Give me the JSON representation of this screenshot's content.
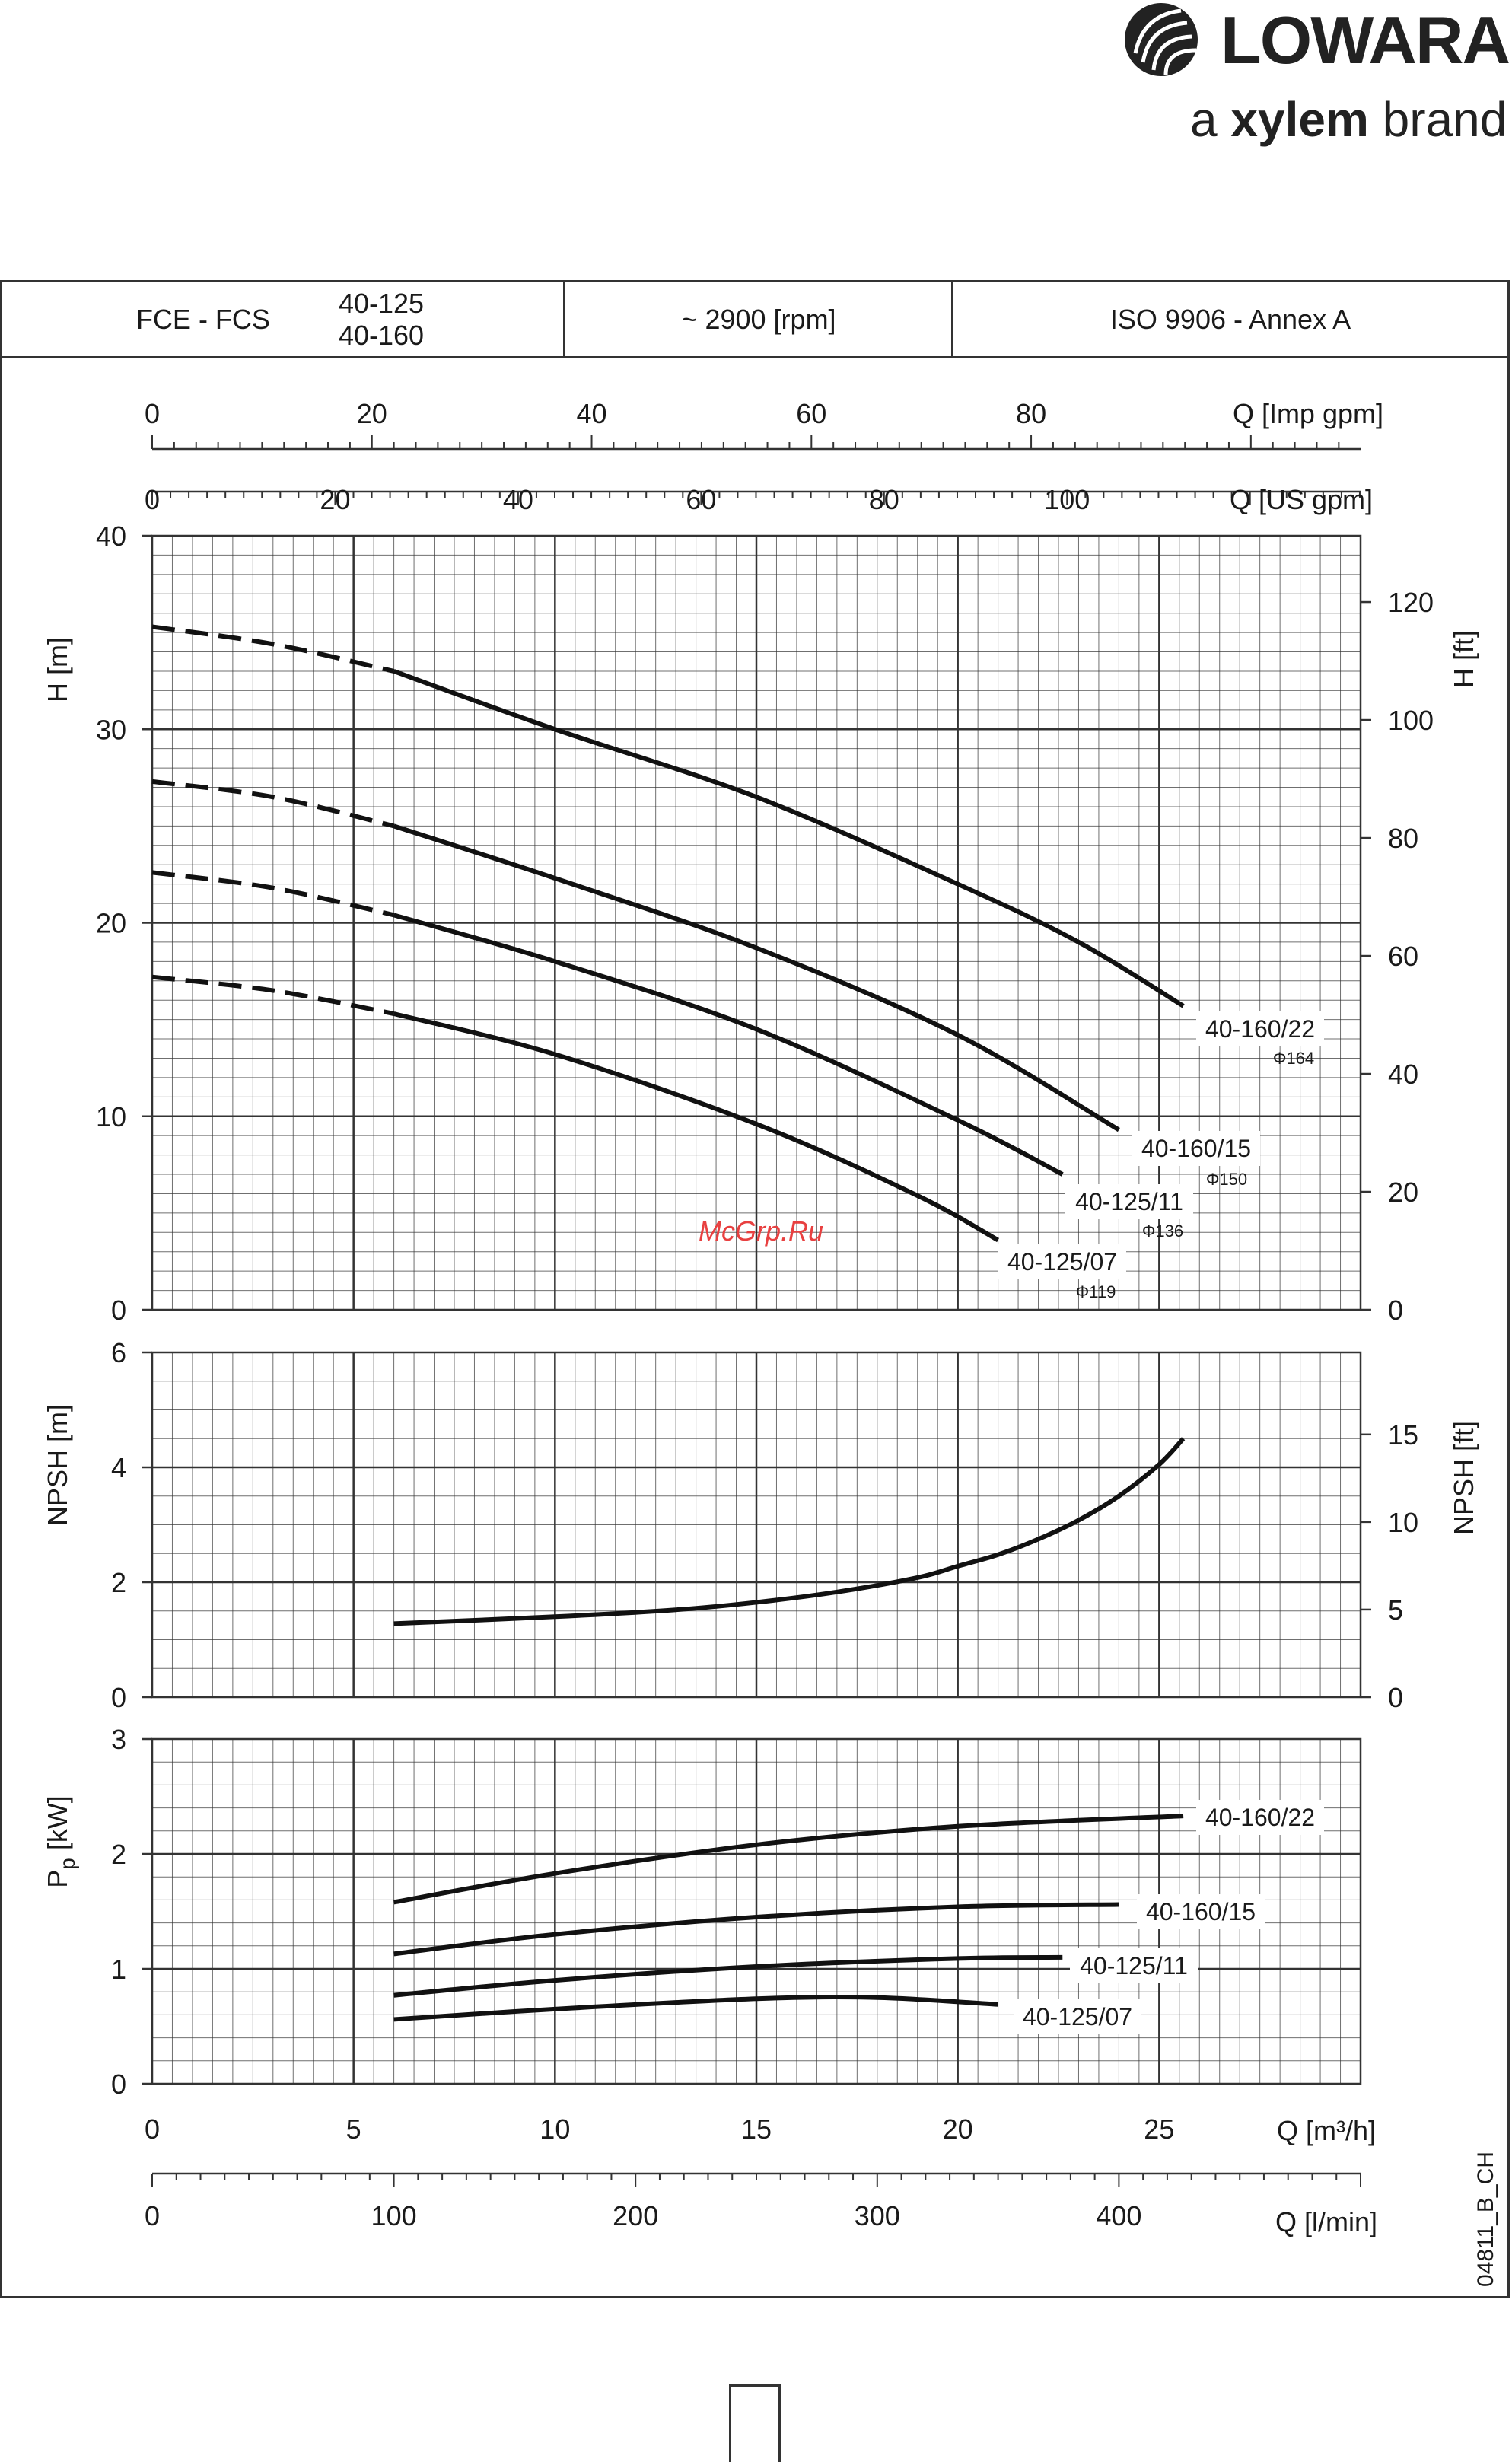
{
  "logo": {
    "brand": "LOWARA",
    "tagline_prefix": "a",
    "tagline_brand": "xylem",
    "tagline_suffix": "brand",
    "icon": "lowara-swirl-icon"
  },
  "header": {
    "series": "FCE - FCS",
    "models": [
      "40-125",
      "40-160"
    ],
    "speed": "~ 2900 [rpm]",
    "standard": "ISO 9906 - Annex A"
  },
  "watermark": "McGrp.Ru",
  "doc_code": "04811_B_CH",
  "colors": {
    "curve": "#111111",
    "grid": "#333333",
    "watermark": "#e84040"
  },
  "chart_data": [
    {
      "type": "line",
      "title": "",
      "xlabel": "Q [m³/h]",
      "ylabel": "H [m]",
      "ylabel_right": "H [ft]",
      "xlim": [
        0,
        30
      ],
      "ylim": [
        0,
        40
      ],
      "y_ticks": [
        0,
        10,
        20,
        30,
        40
      ],
      "y_right_ticks": [
        0,
        20,
        40,
        60,
        80,
        100,
        120
      ],
      "top_axes": [
        {
          "label": "Q [Imp gpm]",
          "ticks": [
            0,
            20,
            40,
            60,
            80
          ]
        },
        {
          "label": "Q [US gpm]",
          "ticks": [
            0,
            20,
            40,
            60,
            80,
            100
          ]
        }
      ],
      "grid": true,
      "dashed_below_x": 6,
      "series": [
        {
          "name": "40-160/22",
          "diameter": "Φ164",
          "x": [
            0,
            3,
            6,
            10,
            15,
            20,
            23,
            25.6
          ],
          "y": [
            35.3,
            34.4,
            33.0,
            30.0,
            26.5,
            22.0,
            19.0,
            15.7
          ]
        },
        {
          "name": "40-160/15",
          "diameter": "Φ150",
          "x": [
            0,
            3,
            6,
            10,
            15,
            20,
            24
          ],
          "y": [
            27.3,
            26.5,
            25.0,
            22.3,
            18.7,
            14.2,
            9.3
          ]
        },
        {
          "name": "40-125/11",
          "diameter": "Φ136",
          "x": [
            0,
            3,
            6,
            10,
            15,
            20,
            22.6
          ],
          "y": [
            22.6,
            21.8,
            20.4,
            18.0,
            14.5,
            9.8,
            7.0
          ]
        },
        {
          "name": "40-125/07",
          "diameter": "Φ119",
          "x": [
            0,
            3,
            6,
            10,
            15,
            19,
            21
          ],
          "y": [
            17.2,
            16.5,
            15.3,
            13.2,
            9.6,
            5.9,
            3.6
          ]
        }
      ]
    },
    {
      "type": "line",
      "title": "",
      "xlabel": "",
      "ylabel": "NPSH [m]",
      "ylabel_right": "NPSH [ft]",
      "xlim": [
        0,
        30
      ],
      "ylim": [
        0,
        6
      ],
      "y_ticks": [
        0,
        2,
        4,
        6
      ],
      "y_right_ticks": [
        0,
        5,
        10,
        15
      ],
      "grid": true,
      "series": [
        {
          "x": [
            6,
            10,
            13,
            15,
            17,
            19,
            20,
            21,
            22,
            23,
            24,
            25,
            25.6
          ],
          "y": [
            1.28,
            1.4,
            1.52,
            1.65,
            1.83,
            2.08,
            2.28,
            2.48,
            2.75,
            3.08,
            3.5,
            4.05,
            4.5
          ]
        }
      ]
    },
    {
      "type": "line",
      "title": "",
      "xlabel": "Q [m³/h]",
      "ylabel": "Pp [kW]",
      "ylabel_main": "P",
      "ylabel_sub": "p",
      "ylabel_unit": "[kW]",
      "xlim": [
        0,
        30
      ],
      "ylim": [
        0,
        3
      ],
      "y_ticks": [
        0,
        1,
        2,
        3
      ],
      "x_ticks": [
        0,
        5,
        10,
        15,
        20,
        25
      ],
      "bottom_axis": {
        "label": "Q [l/min]",
        "ticks": [
          0,
          100,
          200,
          300,
          400
        ]
      },
      "grid": true,
      "series": [
        {
          "name": "40-160/22",
          "x": [
            6,
            10,
            15,
            20,
            25.6
          ],
          "y": [
            1.58,
            1.83,
            2.08,
            2.24,
            2.33
          ]
        },
        {
          "name": "40-160/15",
          "x": [
            6,
            10,
            15,
            20,
            24
          ],
          "y": [
            1.13,
            1.3,
            1.45,
            1.54,
            1.56
          ]
        },
        {
          "name": "40-125/11",
          "x": [
            6,
            10,
            15,
            20,
            22.6
          ],
          "y": [
            0.77,
            0.9,
            1.02,
            1.09,
            1.1
          ]
        },
        {
          "name": "40-125/07",
          "x": [
            6,
            10,
            15,
            18,
            21
          ],
          "y": [
            0.56,
            0.65,
            0.74,
            0.75,
            0.69
          ]
        }
      ]
    }
  ]
}
